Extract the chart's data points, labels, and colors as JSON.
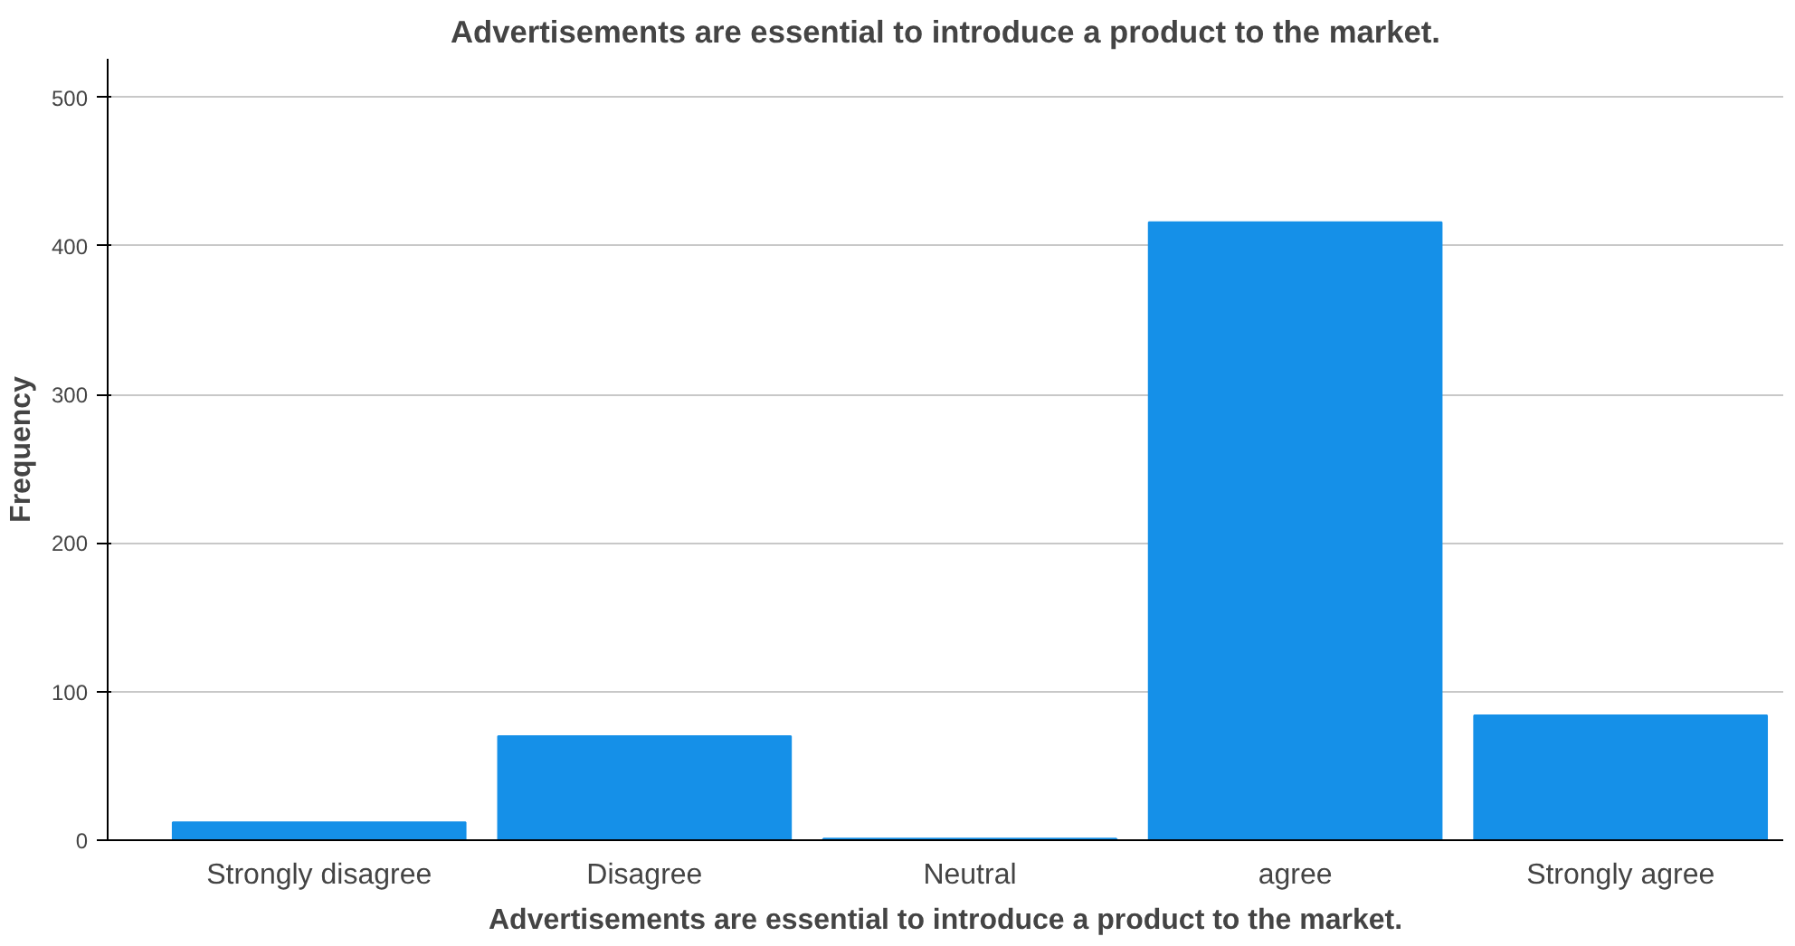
{
  "chart_data": {
    "type": "bar",
    "title": "Advertisements are essential to introduce a product to the market.",
    "xlabel": "Advertisements are essential to introduce a product to the market.",
    "ylabel": "Frequency",
    "categories": [
      "Strongly disagree",
      "Disagree",
      "Neutral",
      "agree",
      "Strongly agree"
    ],
    "values": [
      12,
      70,
      1,
      416,
      84
    ],
    "color": "#1590e8",
    "ylim": [
      0,
      526
    ],
    "yticks": [
      0,
      100,
      200,
      300,
      400,
      500
    ],
    "grid": "y"
  }
}
